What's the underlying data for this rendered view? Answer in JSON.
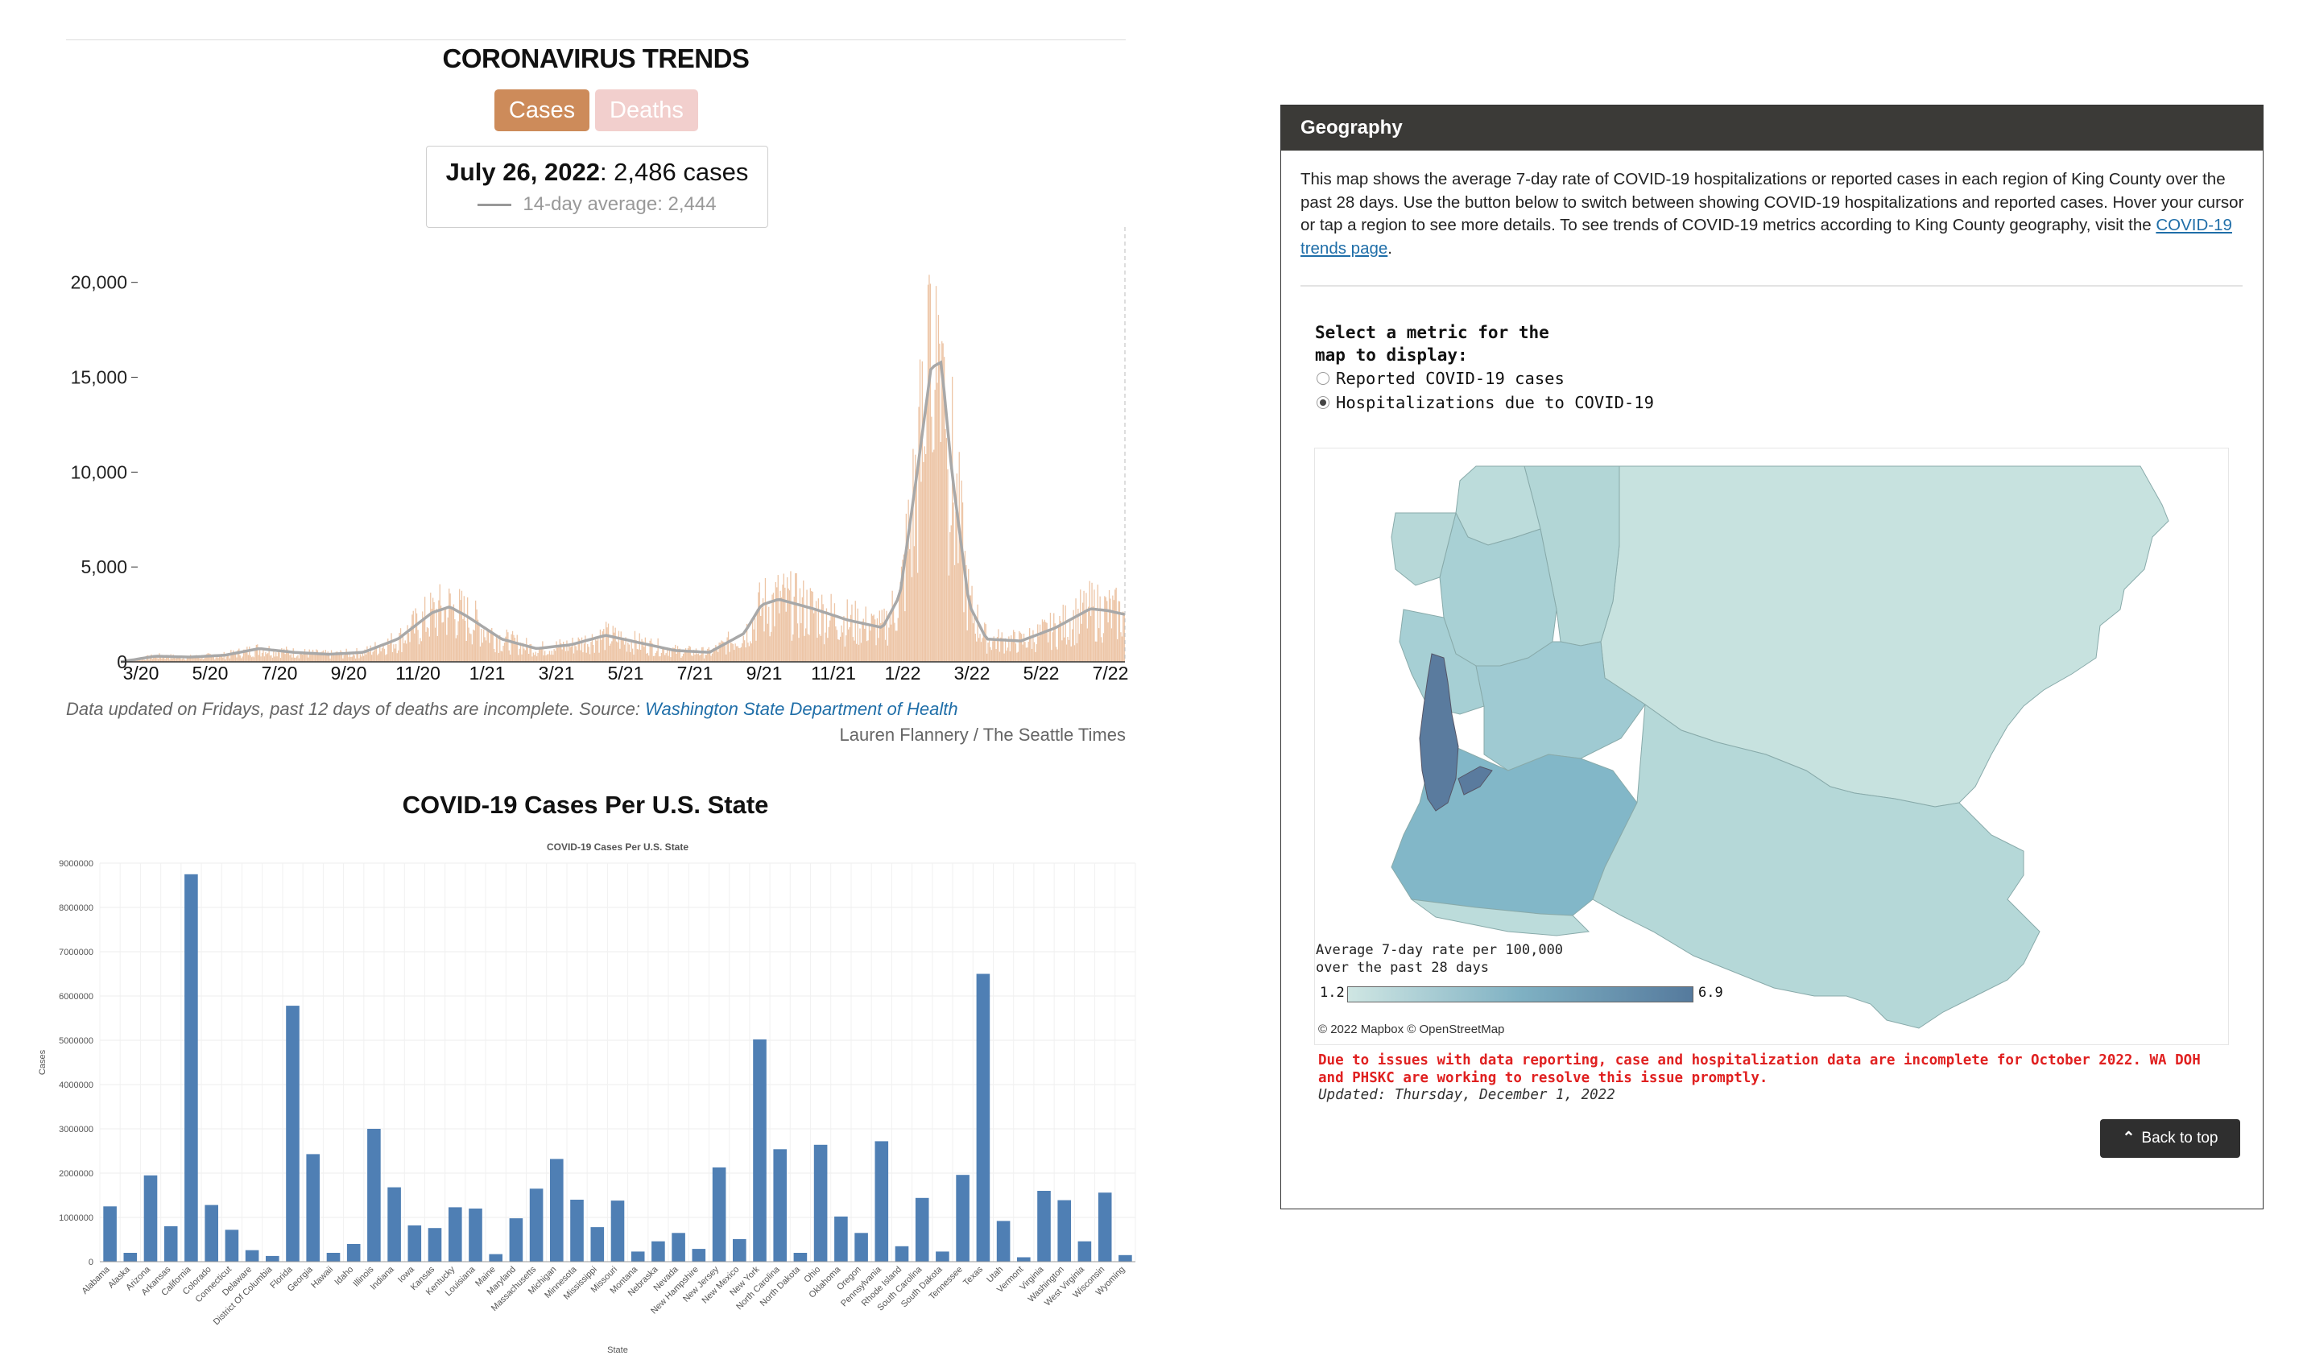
{
  "trends": {
    "title": "CORONAVIRUS TRENDS",
    "toggle_cases": "Cases",
    "toggle_deaths": "Deaths",
    "tooltip_date": "July 26, 2022",
    "tooltip_value": ": 2,486 cases",
    "tooltip_avg": "14-day average: 2,444",
    "caption_text": "Data updated on Fridays, past 12 days of deaths are incomplete. Source: ",
    "caption_link": "Washington State Department of Health",
    "credit": "Lauren Flannery / The Seattle Times",
    "colors": {
      "bars": "#edc5a6",
      "avg_line": "#a8a8a8",
      "cases_button": "#cd8b5a",
      "deaths_button": "#f2cfcd"
    }
  },
  "bar_section": {
    "heading": "COVID-19 Cases Per U.S. State"
  },
  "chart_data": [
    {
      "type": "bar",
      "title": "",
      "ylabel": "",
      "xlabel": "",
      "x_tick_labels": [
        "3/20",
        "5/20",
        "7/20",
        "9/20",
        "11/20",
        "1/21",
        "3/21",
        "5/21",
        "7/21",
        "9/21",
        "11/21",
        "1/22",
        "3/22",
        "5/22",
        "7/22"
      ],
      "y_tick_labels": [
        "0",
        "5,000",
        "10,000",
        "15,000",
        "20,000"
      ],
      "ylim": [
        0,
        23000
      ],
      "x_range_months": [
        0,
        29
      ],
      "series": [
        {
          "name": "Cases",
          "style": "bars",
          "color": "#edc5a6"
        },
        {
          "name": "14-day average",
          "style": "line",
          "color": "#a8a8a8"
        }
      ],
      "avg_profile": [
        [
          0,
          0
        ],
        [
          1,
          300
        ],
        [
          2,
          250
        ],
        [
          3,
          350
        ],
        [
          4,
          700
        ],
        [
          5,
          500
        ],
        [
          6,
          400
        ],
        [
          7,
          500
        ],
        [
          8,
          1200
        ],
        [
          9,
          2600
        ],
        [
          9.5,
          2900
        ],
        [
          10,
          2400
        ],
        [
          11,
          1200
        ],
        [
          12,
          700
        ],
        [
          13,
          900
        ],
        [
          14,
          1400
        ],
        [
          15,
          1000
        ],
        [
          16,
          600
        ],
        [
          17,
          500
        ],
        [
          18,
          1500
        ],
        [
          18.5,
          3000
        ],
        [
          19,
          3300
        ],
        [
          20,
          2800
        ],
        [
          21,
          2200
        ],
        [
          22,
          1800
        ],
        [
          22.5,
          3500
        ],
        [
          23,
          10000
        ],
        [
          23.4,
          15500
        ],
        [
          23.7,
          15800
        ],
        [
          24,
          10000
        ],
        [
          24.5,
          3000
        ],
        [
          25,
          1200
        ],
        [
          26,
          1100
        ],
        [
          27,
          1800
        ],
        [
          28,
          2800
        ],
        [
          28.5,
          2700
        ],
        [
          29,
          2500
        ]
      ],
      "highlight": {
        "date": "July 26, 2022",
        "cases": 2486,
        "avg": 2444
      }
    },
    {
      "type": "bar",
      "title": "COVID-19 Cases Per U.S. State",
      "xlabel": "State",
      "ylabel": "Cases",
      "ylim": [
        0,
        9000000
      ],
      "y_ticks": [
        0,
        1000000,
        2000000,
        3000000,
        4000000,
        5000000,
        6000000,
        7000000,
        8000000,
        9000000
      ],
      "y_tick_labels": [
        "0",
        "1000000",
        "2000000",
        "3000000",
        "4000000",
        "5000000",
        "6000000",
        "7000000",
        "8000000",
        "9000000"
      ],
      "grid": true,
      "color": "#4f7fb4",
      "categories": [
        "Alabama",
        "Alaska",
        "Arizona",
        "Arkansas",
        "California",
        "Colorado",
        "Connecticut",
        "Delaware",
        "District Of Columbia",
        "Florida",
        "Georgia",
        "Hawaii",
        "Idaho",
        "Illinois",
        "Indiana",
        "Iowa",
        "Kansas",
        "Kentucky",
        "Louisiana",
        "Maine",
        "Maryland",
        "Massachusetts",
        "Michigan",
        "Minnesota",
        "Mississippi",
        "Missouri",
        "Montana",
        "Nebraska",
        "Nevada",
        "New Hampshire",
        "New Jersey",
        "New Mexico",
        "New York",
        "North Carolina",
        "North Dakota",
        "Ohio",
        "Oklahoma",
        "Oregon",
        "Pennsylvania",
        "Rhode Island",
        "South Carolina",
        "South Dakota",
        "Tennessee",
        "Texas",
        "Utah",
        "Vermont",
        "Virginia",
        "Washington",
        "West Virginia",
        "Wisconsin",
        "Wyoming"
      ],
      "values": [
        1250000,
        200000,
        1950000,
        800000,
        8750000,
        1280000,
        720000,
        260000,
        130000,
        5780000,
        2430000,
        200000,
        400000,
        3000000,
        1680000,
        820000,
        760000,
        1230000,
        1200000,
        170000,
        980000,
        1650000,
        2320000,
        1400000,
        780000,
        1380000,
        230000,
        460000,
        650000,
        290000,
        2130000,
        510000,
        5020000,
        2540000,
        200000,
        2640000,
        1020000,
        650000,
        2720000,
        350000,
        1440000,
        230000,
        1960000,
        6500000,
        920000,
        100000,
        1600000,
        1390000,
        460000,
        1560000,
        150000
      ]
    }
  ],
  "geography": {
    "header": "Geography",
    "description": "This map shows the average 7-day rate of COVID-19 hospitalizations or reported cases in each region of King County over the past 28 days. Use the button below to switch between showing COVID-19 hospitalizations and reported cases. Hover your cursor or tap a region to see more details. To see trends of COVID-19 metrics according to King County geography, visit the ",
    "description_link": "COVID-19 trends page",
    "description_end": ".",
    "metric_prompt": "Select a metric for the map to display:",
    "option_cases": "Reported COVID-19 cases",
    "option_hosp": "Hospitalizations due to COVID-19",
    "selected_option": "Hospitalizations due to COVID-19",
    "legend_title_1": "Average 7-day rate per 100,000",
    "legend_title_2": "over the past 28 days",
    "legend_min": "1.2",
    "legend_max": "6.9",
    "attribution": "© 2022 Mapbox © OpenStreetMap",
    "warning": "Due to issues with data reporting, case and hospitalization data are incomplete for October 2022. WA DOH and PHSKC are working to resolve this issue promptly.",
    "updated": "Updated: Thursday, December 1, 2022",
    "back_to_top": "Back to top",
    "map_colors": {
      "light": "#c7e2df",
      "mid_light": "#b2d6d6",
      "mid": "#9fcad2",
      "mid_dark": "#82b7c8",
      "dark": "#5a7b9e"
    }
  }
}
